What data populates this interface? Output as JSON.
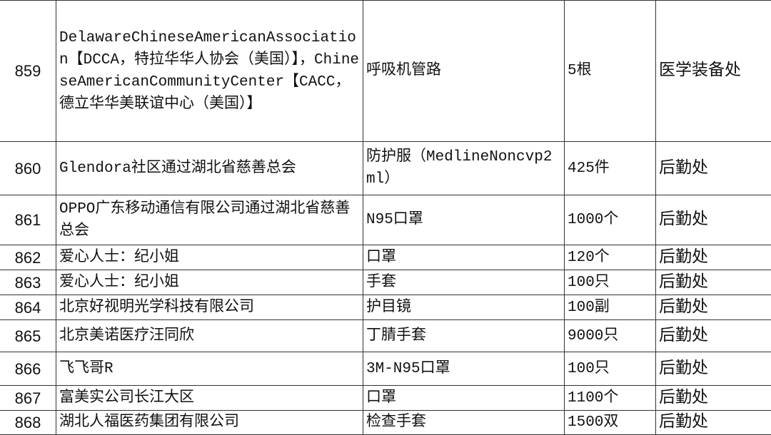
{
  "table": {
    "rows": [
      {
        "no": "859",
        "donor": "DelawareChineseAmericanAssociation【DCCA，特拉华华人协会（美国）】，ChineseAmericanCommunityCenter【CACC，德立华华美联谊中心（美国）】",
        "item": "呼吸机管路",
        "quantity": "5根",
        "department": "医学装备处"
      },
      {
        "no": "860",
        "donor": "Glendora社区通过湖北省慈善总会",
        "item": "防护服（MedlineNoncvp2ml）",
        "quantity": "425件",
        "department": "后勤处"
      },
      {
        "no": "861",
        "donor": "OPPO广东移动通信有限公司通过湖北省慈善总会",
        "item": "N95口罩",
        "quantity": "1000个",
        "department": "后勤处"
      },
      {
        "no": "862",
        "donor": "爱心人士：纪小姐",
        "item": "口罩",
        "quantity": "120个",
        "department": "后勤处"
      },
      {
        "no": "863",
        "donor": "爱心人士：纪小姐",
        "item": "手套",
        "quantity": "100只",
        "department": "后勤处"
      },
      {
        "no": "864",
        "donor": "北京好视明光学科技有限公司",
        "item": "护目镜",
        "quantity": "100副",
        "department": "后勤处"
      },
      {
        "no": "865",
        "donor": "北京美诺医疗汪同欣",
        "item": "丁腈手套",
        "quantity": "9000只",
        "department": "后勤处"
      },
      {
        "no": "866",
        "donor": "飞飞哥R",
        "item": "3M-N95口罩",
        "quantity": "100只",
        "department": "后勤处"
      },
      {
        "no": "867",
        "donor": "富美实公司长江大区",
        "item": "口罩",
        "quantity": "1100个",
        "department": "后勤处"
      },
      {
        "no": "868",
        "donor": "湖北人福医药集团有限公司",
        "item": "检查手套",
        "quantity": "1500双",
        "department": "后勤处"
      }
    ]
  }
}
